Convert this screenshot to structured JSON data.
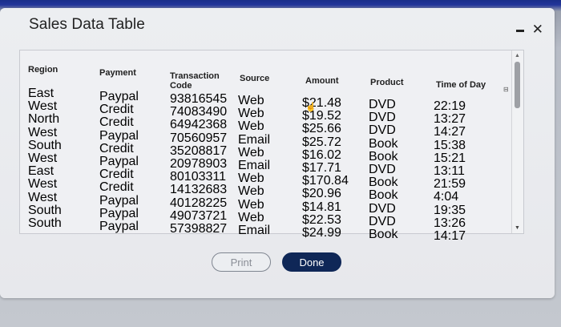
{
  "window": {
    "title": "Sales Data Table"
  },
  "table": {
    "headers": [
      "Region",
      "Payment",
      "Transaction Code",
      "Source",
      "Amount",
      "Product",
      "Time of Day"
    ],
    "rows": [
      [
        "East",
        "Paypal",
        "93816545",
        "Web",
        "$21.48",
        "DVD",
        "22:19"
      ],
      [
        "West",
        "Credit",
        "74083490",
        "Web",
        "$19.52",
        "DVD",
        "13:27"
      ],
      [
        "North",
        "Credit",
        "64942368",
        "Web",
        "$25.66",
        "DVD",
        "14:27"
      ],
      [
        "West",
        "Paypal",
        "70560957",
        "Email",
        "$25.72",
        "Book",
        "15:38"
      ],
      [
        "South",
        "Credit",
        "35208817",
        "Web",
        "$16.02",
        "Book",
        "15:21"
      ],
      [
        "West",
        "Paypal",
        "20978903",
        "Email",
        "$17.71",
        "DVD",
        "13:11"
      ],
      [
        "East",
        "Credit",
        "80103311",
        "Web",
        "$170.84",
        "Book",
        "21:59"
      ],
      [
        "West",
        "Credit",
        "14132683",
        "Web",
        "$20.96",
        "Book",
        "4:04"
      ],
      [
        "West",
        "Paypal",
        "40128225",
        "Web",
        "$14.81",
        "DVD",
        "19:35"
      ],
      [
        "South",
        "Paypal",
        "49073721",
        "Web",
        "$22.53",
        "DVD",
        "13:26"
      ],
      [
        "South",
        "Paypal",
        "57398827",
        "Email",
        "$24.99",
        "Book",
        "14:17"
      ]
    ]
  },
  "buttons": {
    "print": "Print",
    "done": "Done"
  }
}
